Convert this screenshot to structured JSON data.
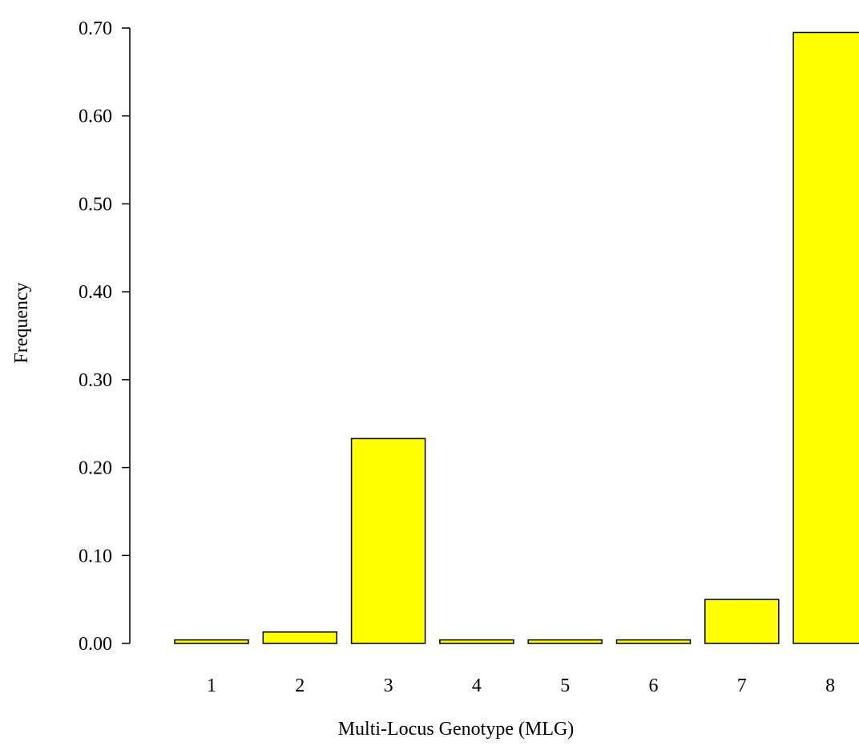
{
  "chart_data": {
    "type": "bar",
    "title": "",
    "xlabel": "Multi-Locus Genotype (MLG)",
    "ylabel": "Frequency",
    "categories": [
      "1",
      "2",
      "3",
      "4",
      "5",
      "6",
      "7",
      "8"
    ],
    "values": [
      0.004,
      0.013,
      0.233,
      0.004,
      0.004,
      0.004,
      0.05,
      0.695
    ],
    "ylim": [
      0,
      0.7
    ],
    "yticks": [
      "0.00",
      "0.10",
      "0.20",
      "0.30",
      "0.40",
      "0.50",
      "0.60",
      "0.70"
    ],
    "grid": false,
    "legend": "none",
    "bar_color": "#FFFF00",
    "bar_edge_color": "#000000"
  }
}
